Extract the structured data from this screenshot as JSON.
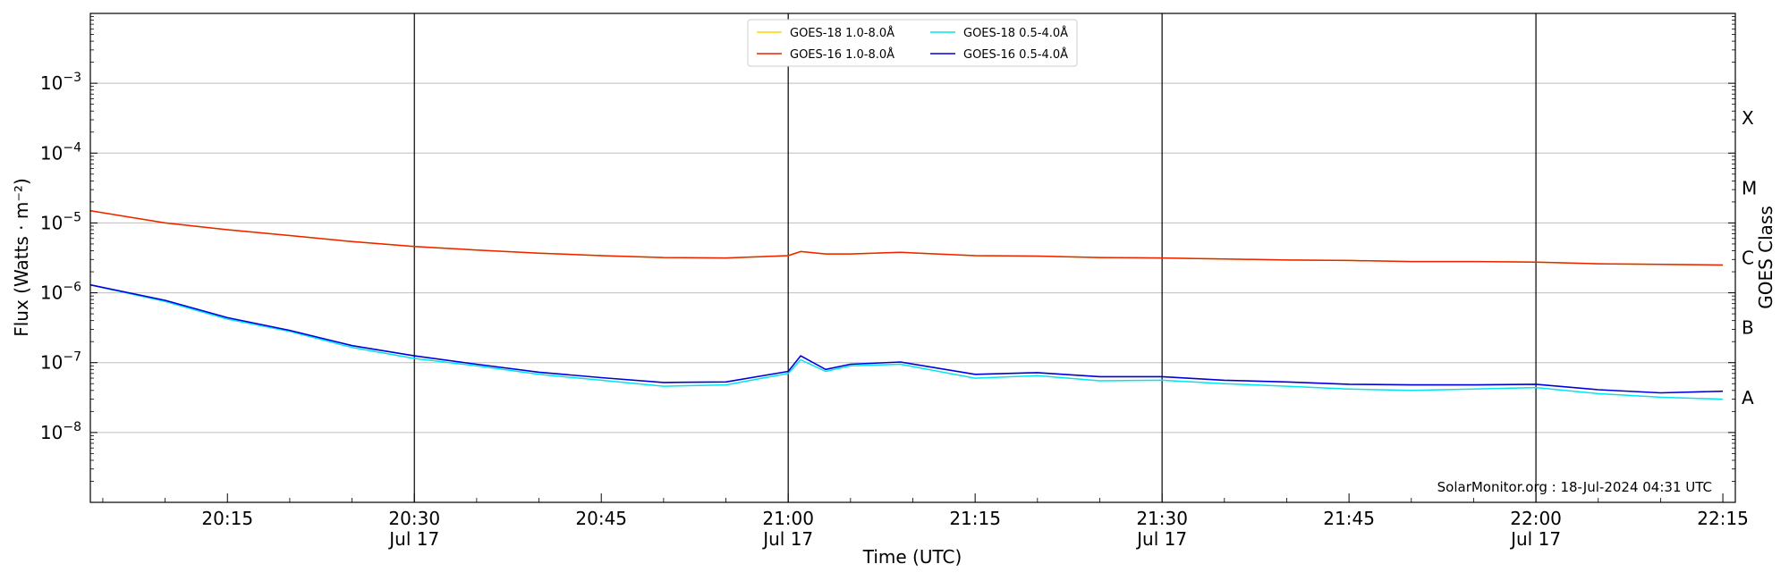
{
  "chart_data": {
    "type": "line",
    "xlabel": "Time (UTC)",
    "ylabel": "Flux (Watts · m⁻²)",
    "right_label": "GOES Class",
    "credit": "SolarMonitor.org : 18-Jul-2024 04:31 UTC",
    "yscale": "log",
    "ylim": [
      1e-09,
      0.01
    ],
    "xlim": [
      "20:04",
      "22:16"
    ],
    "grid": "horizontal at decades 1e-8..1e-3",
    "legend_placement": "top-center",
    "x_ticks": [
      {
        "t": "20:15",
        "label": "20:15",
        "sub": ""
      },
      {
        "t": "20:30",
        "label": "20:30",
        "sub": "Jul 17"
      },
      {
        "t": "20:45",
        "label": "20:45",
        "sub": ""
      },
      {
        "t": "21:00",
        "label": "21:00",
        "sub": "Jul 17"
      },
      {
        "t": "21:15",
        "label": "21:15",
        "sub": ""
      },
      {
        "t": "21:30",
        "label": "21:30",
        "sub": "Jul 17"
      },
      {
        "t": "21:45",
        "label": "21:45",
        "sub": ""
      },
      {
        "t": "22:00",
        "label": "22:00",
        "sub": "Jul 17"
      },
      {
        "t": "22:15",
        "label": "22:15",
        "sub": ""
      }
    ],
    "vertical_lines": [
      "20:30",
      "21:00",
      "21:30",
      "22:00"
    ],
    "y_ticks": [
      {
        "value": 1e-08,
        "base": "10",
        "exp": "−8"
      },
      {
        "value": 1e-07,
        "base": "10",
        "exp": "−7"
      },
      {
        "value": 1e-06,
        "base": "10",
        "exp": "−6"
      },
      {
        "value": 1e-05,
        "base": "10",
        "exp": "−5"
      },
      {
        "value": 0.0001,
        "base": "10",
        "exp": "−4"
      },
      {
        "value": 0.001,
        "base": "10",
        "exp": "−3"
      }
    ],
    "goes_classes": [
      {
        "label": "A",
        "value": 1e-08
      },
      {
        "label": "B",
        "value": 1e-07
      },
      {
        "label": "C",
        "value": 1e-06
      },
      {
        "label": "M",
        "value": 1e-05
      },
      {
        "label": "X",
        "value": 0.0001
      }
    ],
    "x": [
      "20:04",
      "20:10",
      "20:15",
      "20:20",
      "20:25",
      "20:30",
      "20:35",
      "20:40",
      "20:45",
      "20:50",
      "20:55",
      "21:00",
      "21:01",
      "21:03",
      "21:05",
      "21:09",
      "21:15",
      "21:20",
      "21:25",
      "21:30",
      "21:35",
      "21:40",
      "21:45",
      "21:50",
      "21:55",
      "22:00",
      "22:05",
      "22:10",
      "22:15"
    ],
    "series": [
      {
        "name": "GOES-18 1.0-8.0Å",
        "color": "#ffd700",
        "values": [
          1.5e-05,
          1e-05,
          8e-06,
          6.6e-06,
          5.4e-06,
          4.6e-06,
          4.1e-06,
          3.7e-06,
          3.4e-06,
          3.2e-06,
          3.15e-06,
          3.4e-06,
          3.9e-06,
          3.6e-06,
          3.6e-06,
          3.8e-06,
          3.4e-06,
          3.35e-06,
          3.2e-06,
          3.15e-06,
          3.05e-06,
          2.95e-06,
          2.9e-06,
          2.8e-06,
          2.8e-06,
          2.75e-06,
          2.6e-06,
          2.55e-06,
          2.5e-06
        ]
      },
      {
        "name": "GOES-18 0.5-4.0Å",
        "color": "#00e5ee",
        "values": [
          1.3e-06,
          7.5e-07,
          4.2e-07,
          2.8e-07,
          1.65e-07,
          1.15e-07,
          9e-08,
          6.8e-08,
          5.6e-08,
          4.6e-08,
          4.8e-08,
          7e-08,
          1.1e-07,
          7.5e-08,
          9e-08,
          9.5e-08,
          6e-08,
          6.5e-08,
          5.5e-08,
          5.6e-08,
          5e-08,
          4.6e-08,
          4.2e-08,
          4e-08,
          4.2e-08,
          4.4e-08,
          3.6e-08,
          3.2e-08,
          3e-08
        ]
      },
      {
        "name": "GOES-16 1.0-8.0Å",
        "color": "#ee2200",
        "values": [
          1.5e-05,
          1e-05,
          8e-06,
          6.6e-06,
          5.4e-06,
          4.6e-06,
          4.1e-06,
          3.7e-06,
          3.4e-06,
          3.2e-06,
          3.15e-06,
          3.4e-06,
          3.9e-06,
          3.6e-06,
          3.6e-06,
          3.8e-06,
          3.4e-06,
          3.35e-06,
          3.2e-06,
          3.15e-06,
          3.05e-06,
          2.95e-06,
          2.9e-06,
          2.8e-06,
          2.8e-06,
          2.75e-06,
          2.6e-06,
          2.55e-06,
          2.5e-06
        ]
      },
      {
        "name": "GOES-16 0.5-4.0Å",
        "color": "#0000dd",
        "values": [
          1.3e-06,
          7.8e-07,
          4.4e-07,
          2.9e-07,
          1.75e-07,
          1.25e-07,
          9.5e-08,
          7.3e-08,
          6.1e-08,
          5.2e-08,
          5.3e-08,
          7.5e-08,
          1.25e-07,
          8e-08,
          9.5e-08,
          1.02e-07,
          6.8e-08,
          7.2e-08,
          6.3e-08,
          6.3e-08,
          5.6e-08,
          5.3e-08,
          4.9e-08,
          4.8e-08,
          4.8e-08,
          4.9e-08,
          4.1e-08,
          3.7e-08,
          3.9e-08
        ]
      }
    ],
    "legend_order": [
      0,
      1,
      2,
      3
    ]
  }
}
